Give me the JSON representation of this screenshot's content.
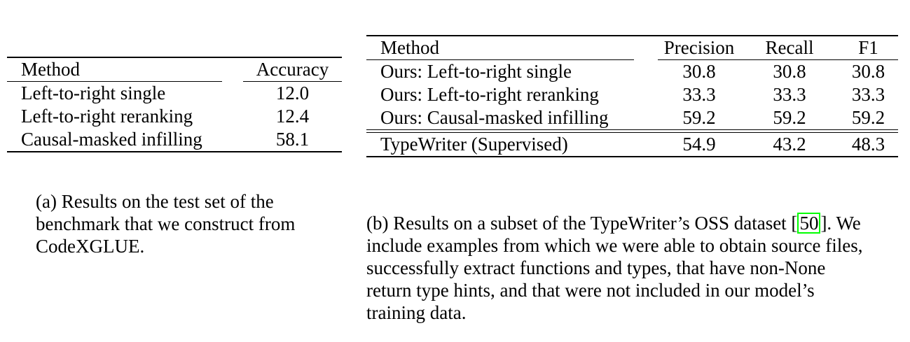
{
  "table_a": {
    "headers": [
      "Method",
      "Accuracy"
    ],
    "rows": [
      {
        "method": "Left-to-right single",
        "accuracy": "12.0",
        "bold": false
      },
      {
        "method": "Left-to-right reranking",
        "accuracy": "12.4",
        "bold": false
      },
      {
        "method": "Causal-masked infilling",
        "accuracy": "58.1",
        "bold": true
      }
    ]
  },
  "caption_a": "(a) Results on the test set of the benchmark that we construct from CodeXGLUE.",
  "table_b": {
    "headers": [
      "Method",
      "Precision",
      "Recall",
      "F1"
    ],
    "rows": [
      {
        "method": "Ours: Left-to-right single",
        "precision": "30.8",
        "recall": "30.8",
        "f1": "30.8",
        "bold": false
      },
      {
        "method": "Ours: Left-to-right reranking",
        "precision": "33.3",
        "recall": "33.3",
        "f1": "33.3",
        "bold": false
      },
      {
        "method": "Ours: Causal-masked infilling",
        "precision": "59.2",
        "recall": "59.2",
        "f1": "59.2",
        "bold": true
      }
    ],
    "baseline": {
      "method": "TypeWriter (Supervised)",
      "precision": "54.9",
      "recall": "43.2",
      "f1": "48.3"
    }
  },
  "caption_b": {
    "before_cite": "(b) Results on a subset of the TypeWriter’s OSS dataset [",
    "cite": "50",
    "after_cite": "]. We include examples from which we were able to obtain source files, successfully extract functions and types, that have non-None return type hints, and that were not included in our model’s training data."
  }
}
